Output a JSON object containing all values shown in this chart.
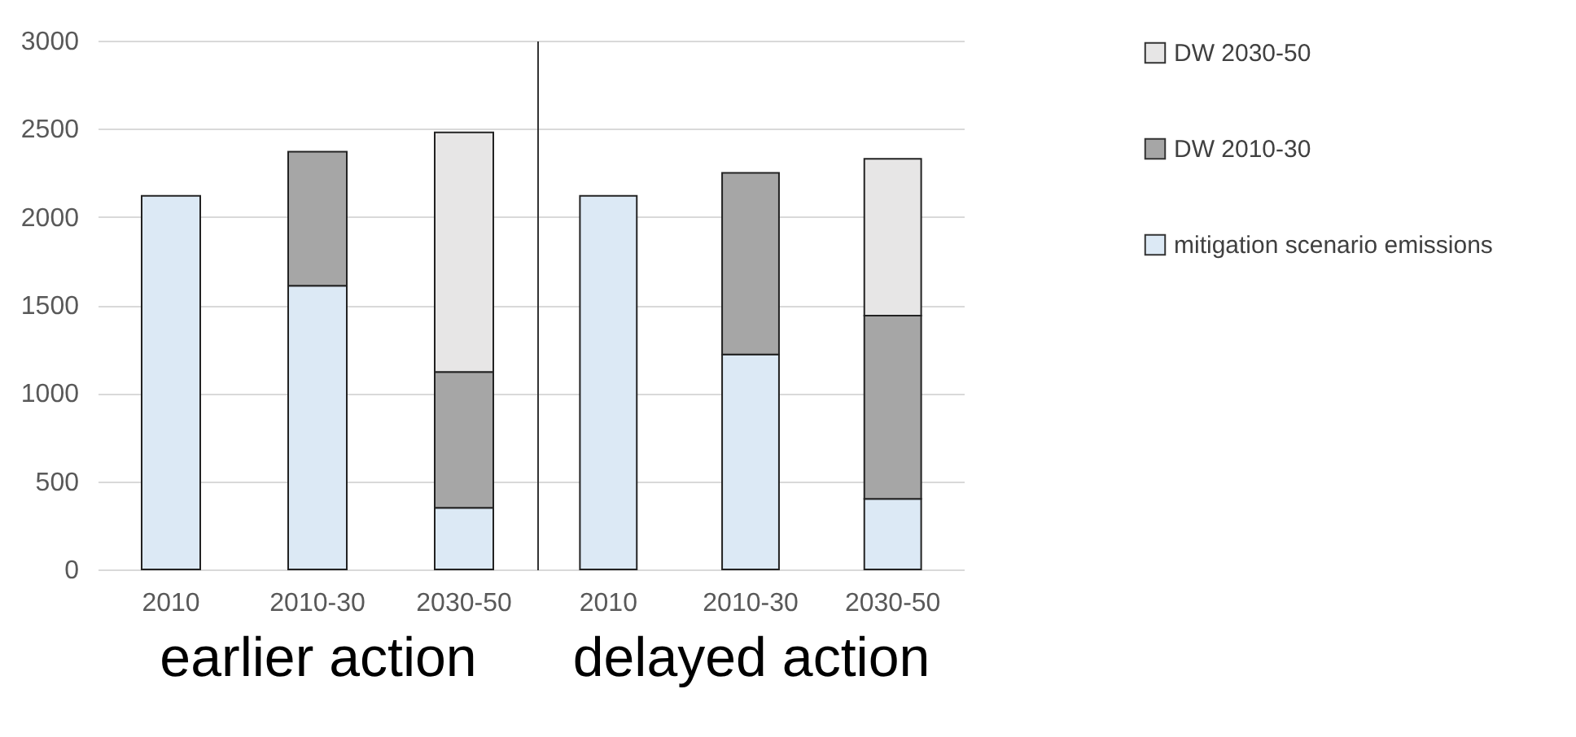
{
  "chart_data": [
    {
      "type": "bar",
      "stacked": true,
      "xlabel": "earlier action",
      "categories": [
        "2010",
        "2010-30",
        "2030-50"
      ],
      "ylim": [
        0,
        3000
      ],
      "yticks": [
        0,
        500,
        1000,
        1500,
        2000,
        2500,
        3000
      ],
      "grid": "y",
      "legend": "right",
      "series": [
        {
          "name": "mitigation scenario emissions",
          "color": "#dce9f5",
          "values": [
            2120,
            1610,
            350
          ]
        },
        {
          "name": "DW 2010-30",
          "color": "#a6a6a6",
          "values": [
            null,
            760,
            770
          ]
        },
        {
          "name": "DW 2030-50",
          "color": "#e7e6e6",
          "values": [
            null,
            null,
            1360
          ]
        }
      ]
    },
    {
      "type": "bar",
      "stacked": true,
      "xlabel": "delayed action",
      "categories": [
        "2010",
        "2010-30",
        "2030-50"
      ],
      "ylim": [
        0,
        3000
      ],
      "yticks": [
        0,
        500,
        1000,
        1500,
        2000,
        2500,
        3000
      ],
      "grid": "y",
      "legend": "right",
      "tick_labels": "x",
      "series": [
        {
          "name": "mitigation scenario emissions",
          "color": "#dce9f5",
          "values": [
            2120,
            1220,
            400
          ]
        },
        {
          "name": "DW 2010-30",
          "color": "#a6a6a6",
          "values": [
            null,
            1030,
            1040
          ]
        },
        {
          "name": "DW 2030-50",
          "color": "#e7e6e6",
          "values": [
            null,
            null,
            890
          ]
        }
      ]
    }
  ]
}
